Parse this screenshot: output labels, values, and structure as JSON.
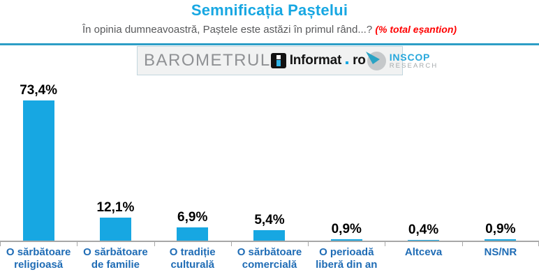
{
  "header": {
    "title": "Semnificația Paștelui",
    "subtitle": "În opinia dumneavoastră, Paștele este astăzi în primul rând...?",
    "note": "(% total eșantion)"
  },
  "banner": {
    "barometrul": "BAROMETRUL",
    "informat_name": "Informat",
    "informat_tld": "ro",
    "inscop_name": "INSCOP",
    "inscop_sub": "RESEARCH"
  },
  "chart_data": {
    "type": "bar",
    "title": "Semnificația Paștelui",
    "categories": [
      "O sărbătoare religioasă",
      "O sărbătoare de familie",
      "O tradiție culturală",
      "O sărbătoare comercială",
      "O perioadă liberă din an",
      "Altceva",
      "NS/NR"
    ],
    "values": [
      73.4,
      12.1,
      6.9,
      5.4,
      0.9,
      0.4,
      0.9
    ],
    "value_labels": [
      "73,4%",
      "12,1%",
      "6,9%",
      "5,4%",
      "0,9%",
      "0,4%",
      "0,9%"
    ],
    "xlabel": "",
    "ylabel": "",
    "ylim": [
      0,
      85
    ],
    "grid": false,
    "legend": false,
    "bar_color": "#17A7E2"
  },
  "colors": {
    "accent": "#17A7E2",
    "subtitle_gray": "#58595B",
    "note_red": "#FF0000",
    "category_blue": "#1F6CB5",
    "axis_gray": "#A7A7A7",
    "rule_teal": "#2D9EC6"
  }
}
